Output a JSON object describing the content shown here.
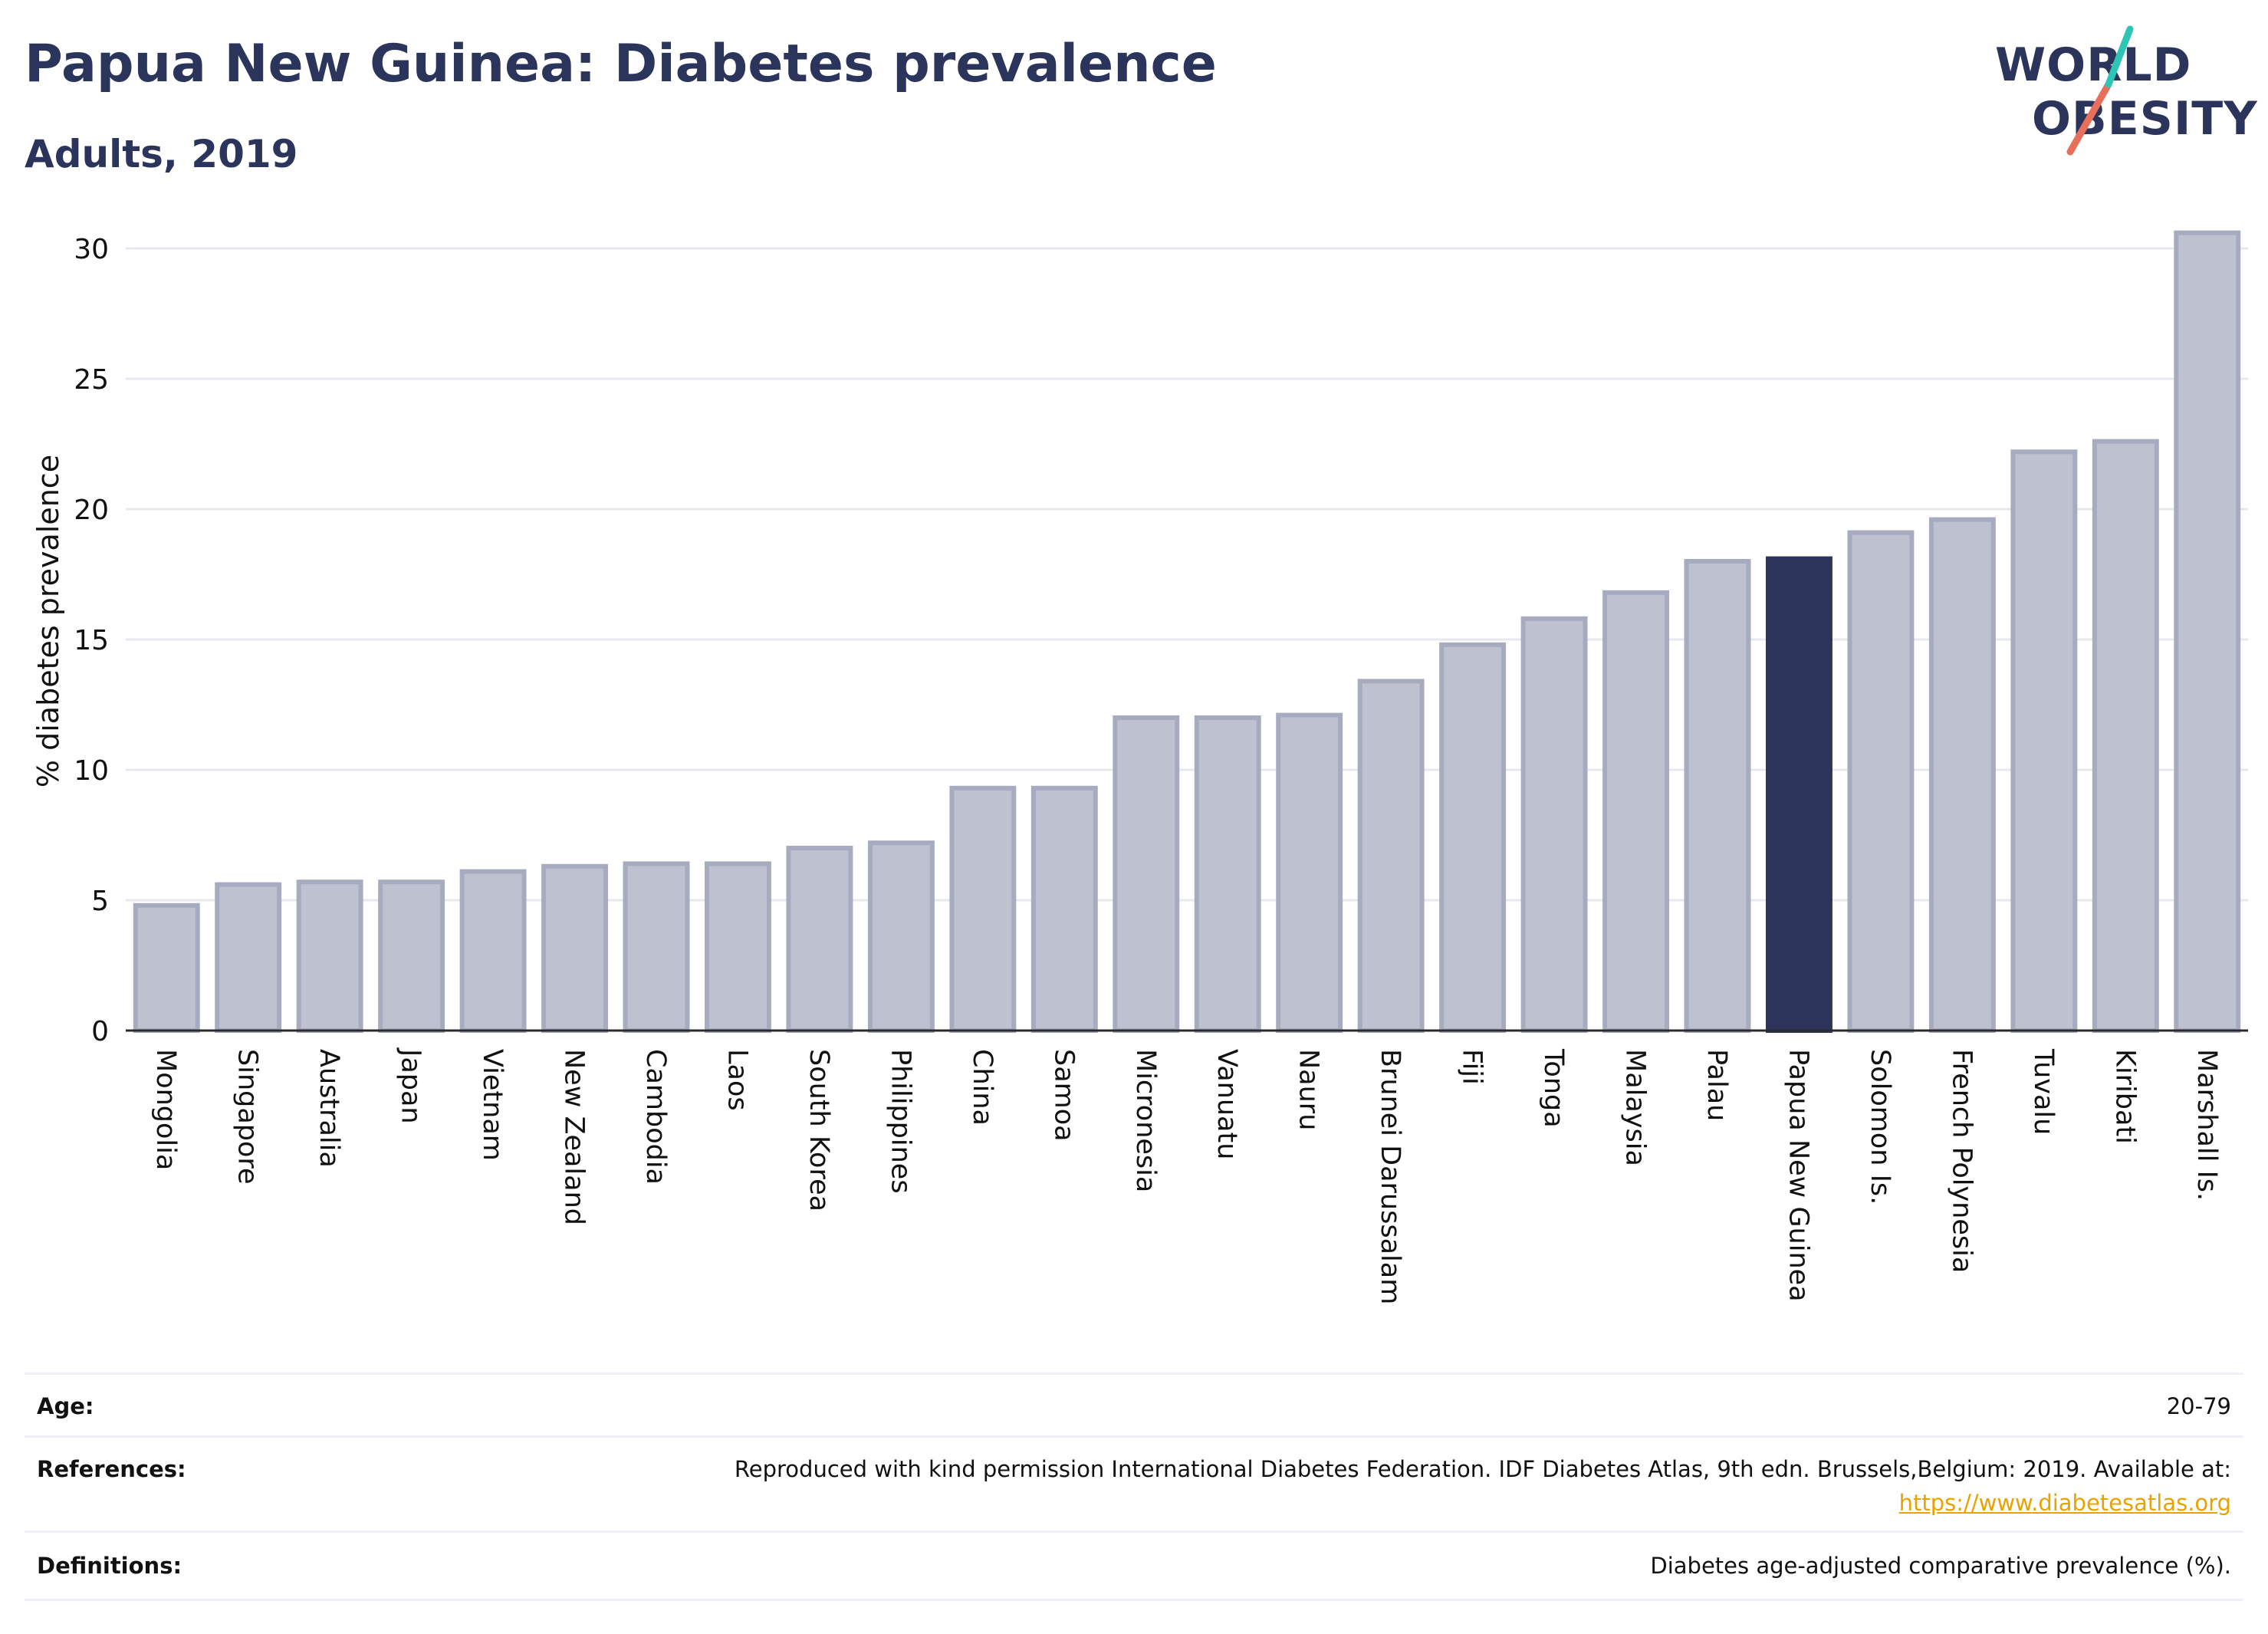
{
  "header": {
    "title": "Papua New Guinea: Diabetes prevalence",
    "subtitle": "Adults, 2019"
  },
  "logo": {
    "line1": "WORLD",
    "line2": "OBESITY",
    "accent_teal": "#2ec4b6",
    "accent_coral": "#e8705a"
  },
  "colors": {
    "bar": "#bec1cf",
    "bar_border": "#a7abc0",
    "highlight": "#2b355c",
    "grid": "#e6e8ee",
    "axis": "#2b2b2b"
  },
  "chart_data": {
    "type": "bar",
    "title": "Papua New Guinea: Diabetes prevalence",
    "subtitle": "Adults, 2019",
    "xlabel": "",
    "ylabel": "% diabetes prevalence",
    "ylim": [
      0,
      31
    ],
    "yticks": [
      0,
      5,
      10,
      15,
      20,
      25,
      30
    ],
    "grid": true,
    "highlight": "Papua New Guinea",
    "categories": [
      "Mongolia",
      "Singapore",
      "Australia",
      "Japan",
      "Vietnam",
      "New Zealand",
      "Cambodia",
      "Laos",
      "South Korea",
      "Philippines",
      "China",
      "Samoa",
      "Micronesia",
      "Vanuatu",
      "Nauru",
      "Brunei Darussalam",
      "Fiji",
      "Tonga",
      "Malaysia",
      "Palau",
      "Papua New Guinea",
      "Solomon Is.",
      "French Polynesia",
      "Tuvalu",
      "Kiribati",
      "Marshall Is."
    ],
    "values": [
      4.8,
      5.6,
      5.7,
      5.7,
      6.1,
      6.3,
      6.4,
      6.4,
      7.0,
      7.2,
      9.3,
      9.3,
      12.0,
      12.0,
      12.1,
      13.4,
      14.8,
      15.8,
      16.8,
      18.0,
      18.1,
      19.1,
      19.6,
      22.2,
      22.6,
      30.6
    ]
  },
  "info": {
    "age_label": "Age:",
    "age_value": "20-79",
    "references_label": "References:",
    "references_text": "Reproduced with kind permission International Diabetes Federation. IDF Diabetes Atlas, 9th edn. Brussels,Belgium: 2019. Available at:",
    "references_link": "https://www.diabetesatlas.org",
    "definitions_label": "Definitions:",
    "definitions_value": "Diabetes age-adjusted comparative prevalence (%)."
  }
}
